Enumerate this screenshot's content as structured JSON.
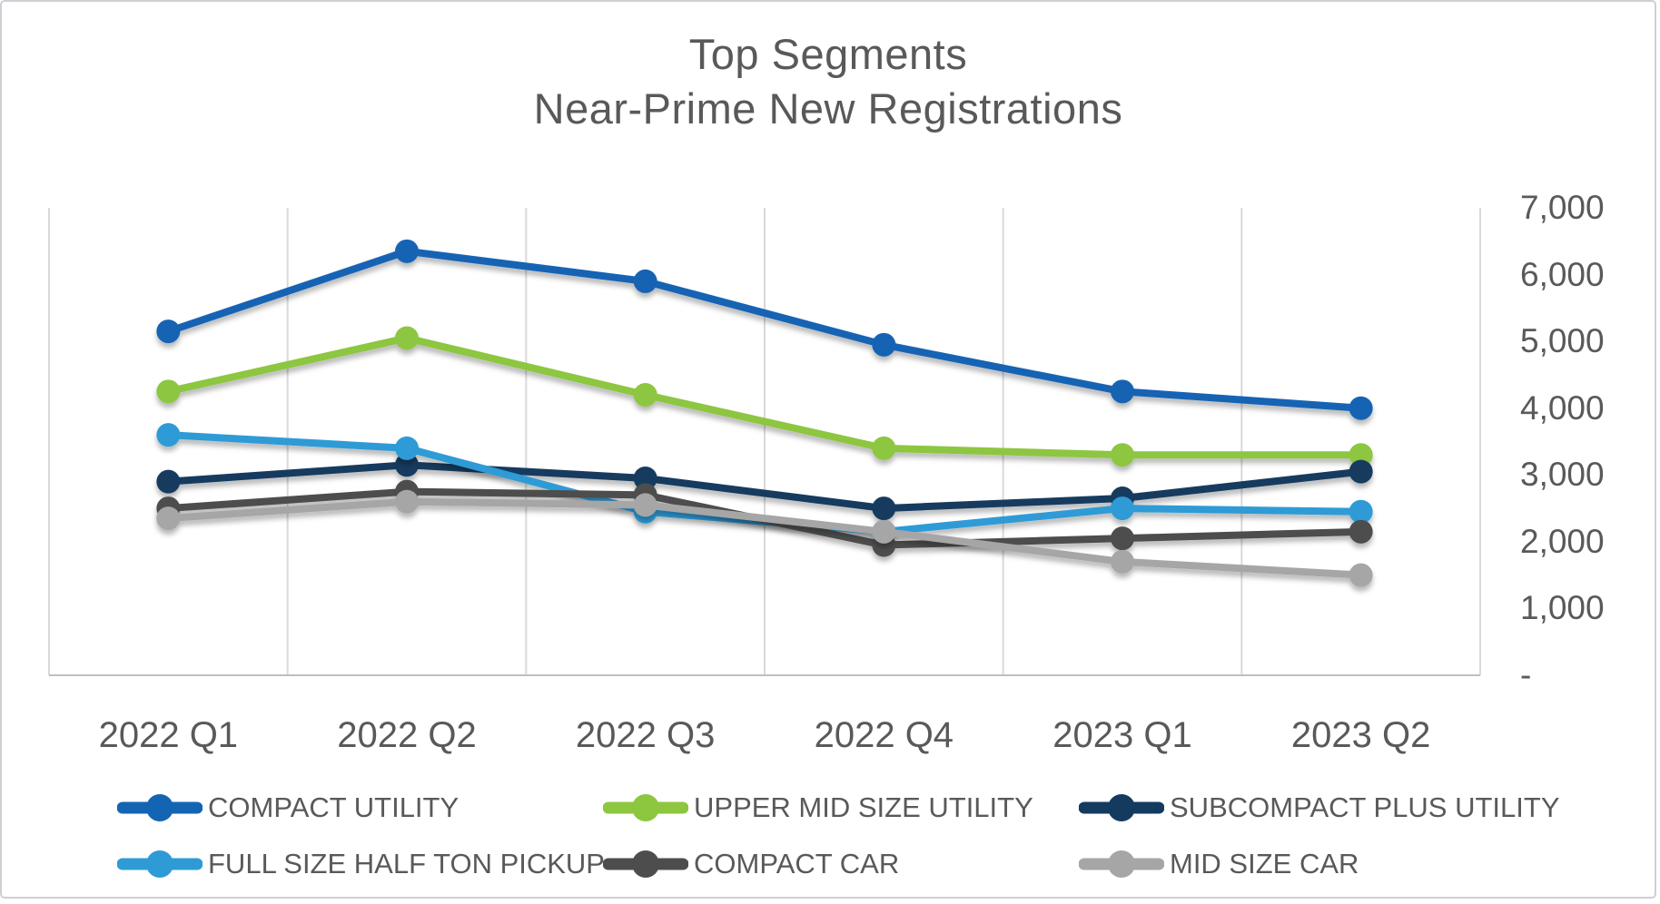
{
  "title": {
    "line1": "Top Segments",
    "line2": "Near-Prime New Registrations"
  },
  "chart_data": {
    "type": "line",
    "title": "Top Segments Near-Prime New Registrations",
    "categories": [
      "2022 Q1",
      "2022 Q2",
      "2022 Q3",
      "2022 Q4",
      "2023 Q1",
      "2023 Q2"
    ],
    "series": [
      {
        "name": "COMPACT UTILITY",
        "color": "#1464b4",
        "values": [
          5150,
          6350,
          5900,
          4950,
          4250,
          4000
        ]
      },
      {
        "name": "UPPER MID SIZE UTILITY",
        "color": "#8dc63f",
        "values": [
          4250,
          5050,
          4200,
          3400,
          3300,
          3300
        ]
      },
      {
        "name": "SUBCOMPACT PLUS UTILITY",
        "color": "#143a5f",
        "values": [
          2900,
          3150,
          2950,
          2500,
          2650,
          3050
        ]
      },
      {
        "name": "FULL SIZE HALF TON PICKUP",
        "color": "#2e9bd6",
        "values": [
          3600,
          3400,
          2450,
          2150,
          2500,
          2450
        ]
      },
      {
        "name": "COMPACT CAR",
        "color": "#4d4d4d",
        "values": [
          2500,
          2750,
          2700,
          1950,
          2050,
          2150
        ]
      },
      {
        "name": "MID SIZE CAR",
        "color": "#a6a6a6",
        "values": [
          2350,
          2600,
          2550,
          2150,
          1700,
          1500
        ]
      }
    ],
    "ylim": [
      0,
      7000
    ],
    "y_ticks": [
      {
        "label": "7,000",
        "value": 7000
      },
      {
        "label": "6,000",
        "value": 6000
      },
      {
        "label": "5,000",
        "value": 5000
      },
      {
        "label": "4,000",
        "value": 4000
      },
      {
        "label": "3,000",
        "value": 3000
      },
      {
        "label": "2,000",
        "value": 2000
      },
      {
        "label": "1,000",
        "value": 1000
      },
      {
        "label": "-",
        "value": 0
      }
    ],
    "y_axis_side": "right",
    "grid": "vertical-only",
    "legend_position": "bottom",
    "colors": {
      "text": "#595959",
      "gridline": "#d9d9d9",
      "axis_line": "#bfbfbf",
      "background": "#ffffff"
    }
  }
}
